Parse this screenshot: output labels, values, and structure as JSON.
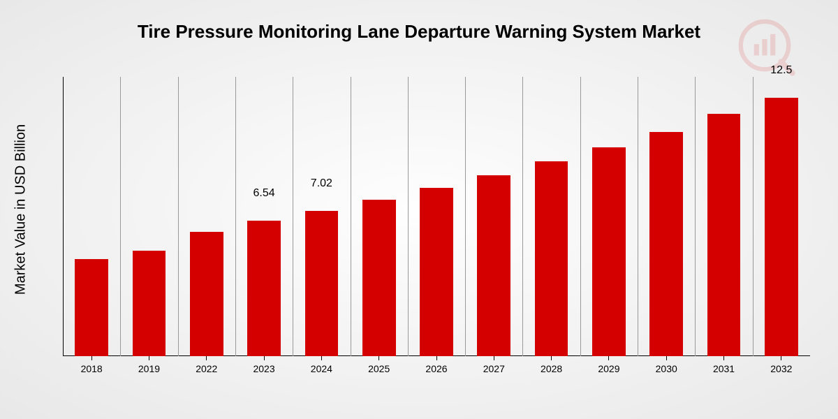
{
  "chart": {
    "type": "bar",
    "title": "Tire Pressure Monitoring Lane Departure Warning System Market",
    "title_fontsize": 26,
    "y_label": "Market Value in USD Billion",
    "y_label_fontsize": 20,
    "background": "radial-gradient(#fefefe, #e8e8e8)",
    "bar_color": "#d40000",
    "grid_color": "#999999",
    "axis_color": "#000000",
    "text_color": "#000000",
    "x_tick_fontsize": 14,
    "value_label_fontsize": 16,
    "y_max": 13.5,
    "y_min": 0,
    "bar_width_ratio": 0.58,
    "categories": [
      "2018",
      "2019",
      "2022",
      "2023",
      "2024",
      "2025",
      "2026",
      "2027",
      "2028",
      "2029",
      "2030",
      "2031",
      "2032"
    ],
    "values": [
      4.7,
      5.1,
      6.0,
      6.54,
      7.02,
      7.55,
      8.15,
      8.75,
      9.4,
      10.1,
      10.85,
      11.7,
      12.5
    ],
    "show_value_label": [
      false,
      false,
      false,
      true,
      true,
      false,
      false,
      false,
      false,
      false,
      false,
      false,
      true
    ],
    "value_labels": [
      "",
      "",
      "",
      "6.54",
      "7.02",
      "",
      "",
      "",
      "",
      "",
      "",
      "",
      "12.5"
    ]
  },
  "logo": {
    "name": "watermark-logo",
    "color": "#d40000"
  }
}
